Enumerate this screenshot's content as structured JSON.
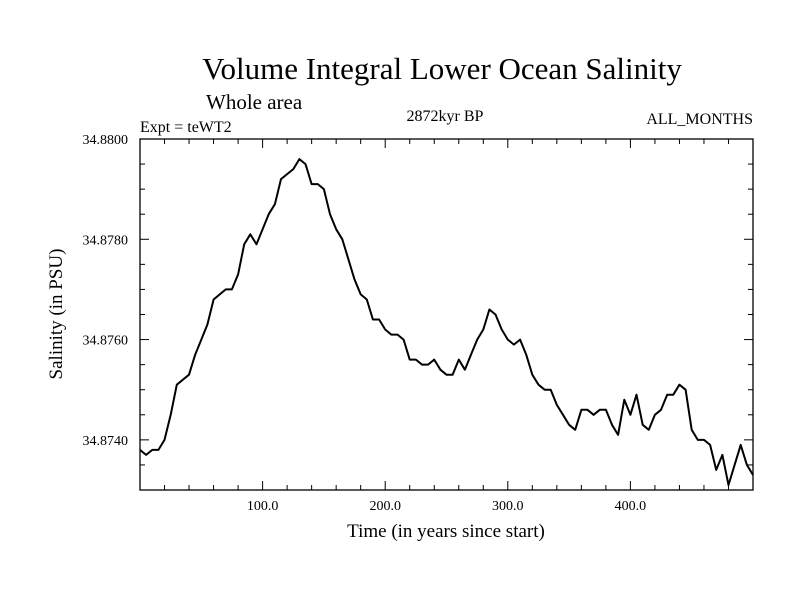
{
  "chart_data": {
    "type": "line",
    "title": "Volume Integral Lower Ocean Salinity",
    "subtitle": "Whole area",
    "info_left": "Expt = teWT2",
    "info_center": "2872kyr BP",
    "info_right": "ALL_MONTHS",
    "xlabel": "Time (in years since start)",
    "ylabel": "Salinity (in PSU)",
    "xlim": [
      0,
      500
    ],
    "ylim": [
      34.873,
      34.88
    ],
    "x_ticks": [
      100,
      200,
      300,
      400
    ],
    "x_tick_labels": [
      "100.0",
      "200.0",
      "300.0",
      "400.0"
    ],
    "y_ticks": [
      34.874,
      34.876,
      34.878,
      34.88
    ],
    "y_tick_labels": [
      "34.8740",
      "34.8760",
      "34.8780",
      "34.8800"
    ],
    "series": [
      {
        "name": "salinity",
        "x": [
          0,
          5,
          10,
          15,
          20,
          25,
          30,
          35,
          40,
          45,
          50,
          55,
          60,
          65,
          70,
          75,
          80,
          85,
          90,
          95,
          100,
          105,
          110,
          115,
          120,
          125,
          130,
          135,
          140,
          145,
          150,
          155,
          160,
          165,
          170,
          175,
          180,
          185,
          190,
          195,
          200,
          205,
          210,
          215,
          220,
          225,
          230,
          235,
          240,
          245,
          250,
          255,
          260,
          265,
          270,
          275,
          280,
          285,
          290,
          295,
          300,
          305,
          310,
          315,
          320,
          325,
          330,
          335,
          340,
          345,
          350,
          355,
          360,
          365,
          370,
          375,
          380,
          385,
          390,
          395,
          400,
          405,
          410,
          415,
          420,
          425,
          430,
          435,
          440,
          445,
          450,
          455,
          460,
          465,
          470,
          475,
          480,
          485,
          490,
          495,
          500
        ],
        "values": [
          34.8738,
          34.8737,
          34.8738,
          34.8738,
          34.874,
          34.8745,
          34.8751,
          34.8752,
          34.8753,
          34.8757,
          34.876,
          34.8763,
          34.8768,
          34.8769,
          34.877,
          34.877,
          34.8773,
          34.8779,
          34.8781,
          34.8779,
          34.8782,
          34.8785,
          34.8787,
          34.8792,
          34.8793,
          34.8794,
          34.8796,
          34.8795,
          34.8791,
          34.8791,
          34.879,
          34.8785,
          34.8782,
          34.878,
          34.8776,
          34.8772,
          34.8769,
          34.8768,
          34.8764,
          34.8764,
          34.8762,
          34.8761,
          34.8761,
          34.876,
          34.8756,
          34.8756,
          34.8755,
          34.8755,
          34.8756,
          34.8754,
          34.8753,
          34.8753,
          34.8756,
          34.8754,
          34.8757,
          34.876,
          34.8762,
          34.8766,
          34.8765,
          34.8762,
          34.876,
          34.8759,
          34.876,
          34.8757,
          34.8753,
          34.8751,
          34.875,
          34.875,
          34.8747,
          34.8745,
          34.8743,
          34.8742,
          34.8746,
          34.8746,
          34.8745,
          34.8746,
          34.8746,
          34.8743,
          34.8741,
          34.8748,
          34.8745,
          34.8749,
          34.8743,
          34.8742,
          34.8745,
          34.8746,
          34.8749,
          34.8749,
          34.8751,
          34.875,
          34.8742,
          34.874,
          34.874,
          34.8739,
          34.8734,
          34.8737,
          34.8731,
          34.8735,
          34.8739,
          34.8735,
          34.8733
        ]
      }
    ]
  }
}
